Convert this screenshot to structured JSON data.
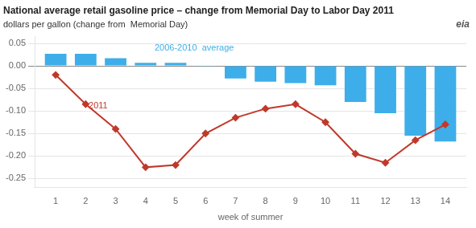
{
  "chart_data": {
    "type": "bar",
    "title": "National average retail gasoline price – change from Memorial Day to Labor Day 2011",
    "subtitle": "dollars per gallon (change from  Memorial Day)",
    "xlabel": "week of summer",
    "x": [
      1,
      2,
      3,
      4,
      5,
      6,
      7,
      8,
      9,
      10,
      11,
      12,
      13,
      14
    ],
    "xlim": [
      0.3,
      14.7
    ],
    "xticks": [
      1,
      2,
      3,
      4,
      5,
      6,
      7,
      8,
      9,
      10,
      11,
      12,
      13,
      14
    ],
    "ylim": [
      -0.27,
      0.065
    ],
    "yticks": [
      0.05,
      {
        "value": 0,
        "label": "0.00"
      },
      -0.05,
      {
        "value": -0.1,
        "label": "-0.10"
      },
      -0.15,
      {
        "value": -0.2,
        "label": "-0.20"
      },
      -0.25
    ],
    "grid": "y",
    "series": [
      {
        "name": "2006-2010  average",
        "type": "bar",
        "color": "#3daee9",
        "values": [
          0.027,
          0.027,
          0.017,
          0.007,
          0.007,
          -0.001,
          -0.028,
          -0.035,
          -0.038,
          -0.043,
          -0.08,
          -0.105,
          -0.155,
          -0.168
        ]
      },
      {
        "name": "2011",
        "type": "line",
        "color": "#c0392b",
        "marker": "diamond",
        "values": [
          -0.02,
          -0.085,
          -0.14,
          -0.225,
          -0.22,
          -0.15,
          -0.115,
          -0.095,
          -0.085,
          -0.125,
          -0.195,
          -0.215,
          -0.165,
          -0.13
        ]
      }
    ],
    "annotations": [
      {
        "text": "2006-2010  average",
        "x": 4.3,
        "y": 0.03,
        "color": "#3daee9"
      },
      {
        "text": "2011",
        "x": 2.1,
        "y": -0.098,
        "color": "#c0392b"
      },
      {
        "text": "eia"
      }
    ]
  }
}
